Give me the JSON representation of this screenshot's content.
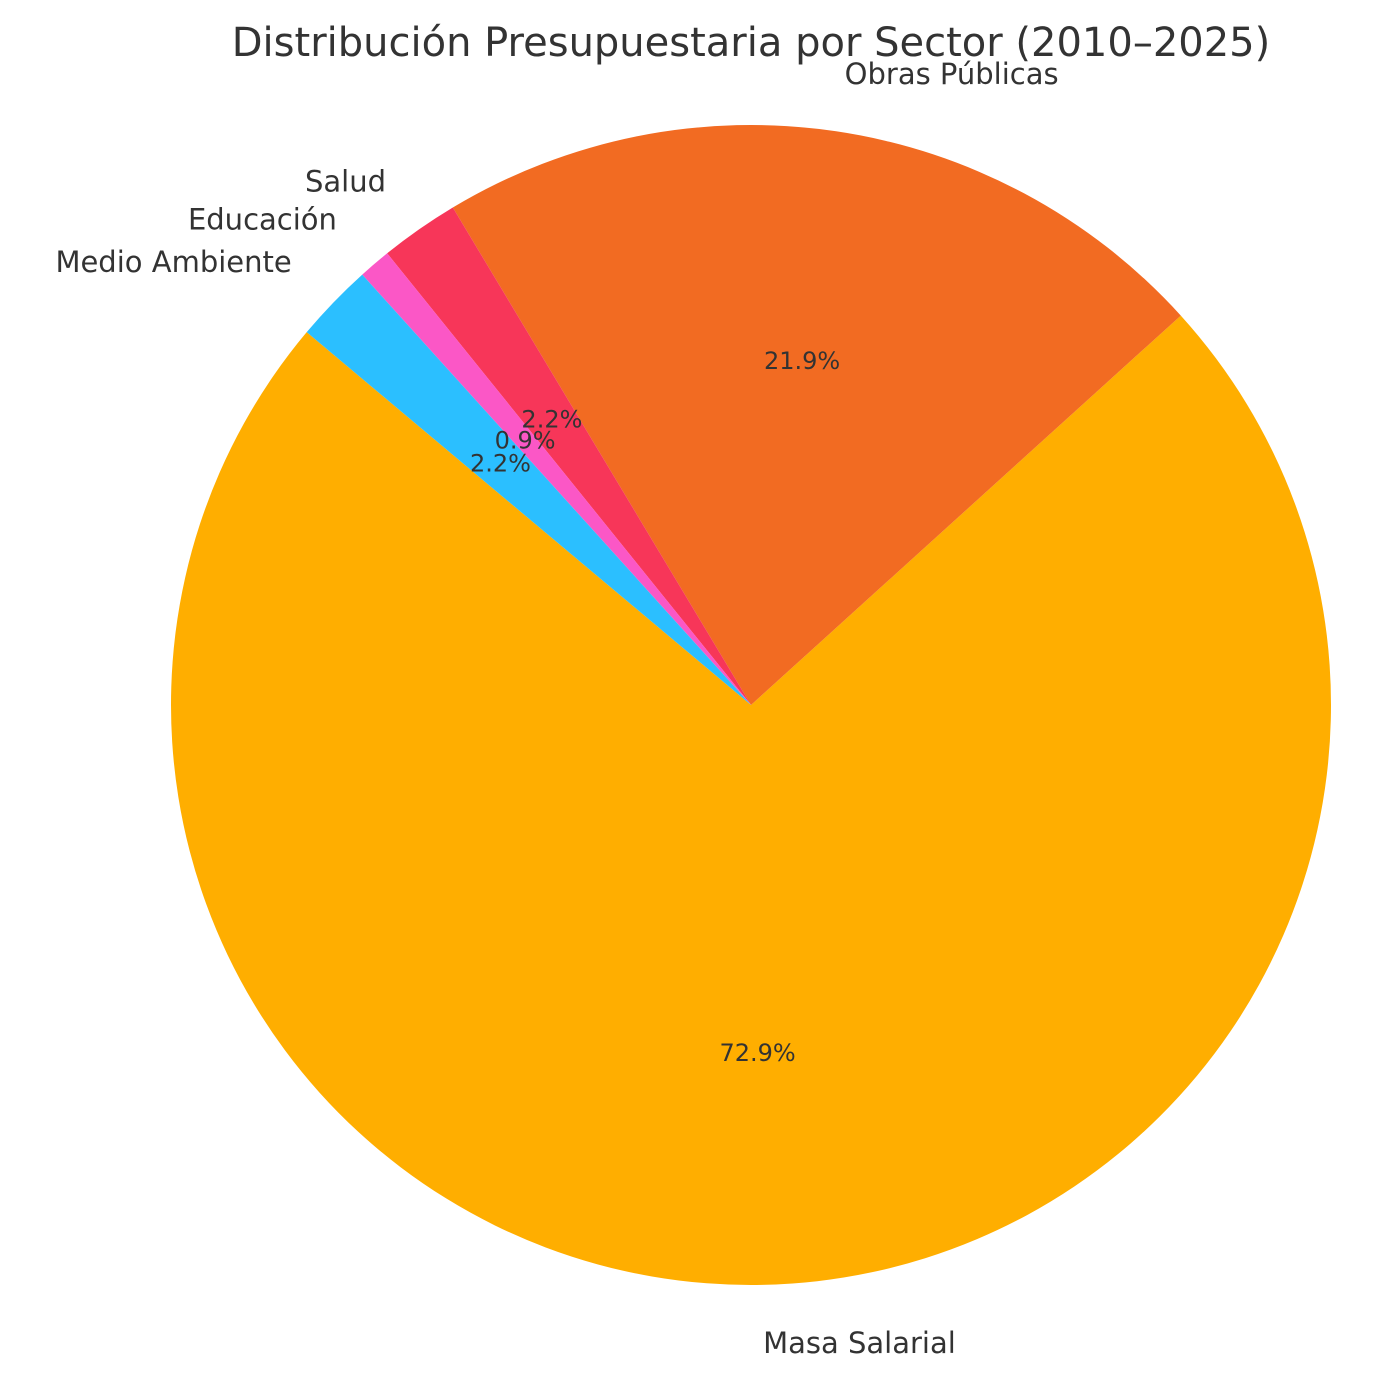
{
  "chart_data": {
    "type": "pie",
    "title": "Distribución Presupuestaria por Sector (2010–2025)",
    "labels": [
      "Masa Salarial",
      "Obras Públicas",
      "Salud",
      "Educación",
      "Medio Ambiente"
    ],
    "values": [
      72.9,
      21.9,
      2.2,
      0.9,
      2.2
    ],
    "percent_labels": [
      "72.9%",
      "21.9%",
      "2.2%",
      "0.9%",
      "2.2%"
    ],
    "colors": [
      "#FFAE00",
      "#F26B22",
      "#F73659",
      "#FB57C6",
      "#2BBFFF"
    ],
    "start_angle_deg": 140,
    "direction": "counterclockwise",
    "legend": "none"
  }
}
